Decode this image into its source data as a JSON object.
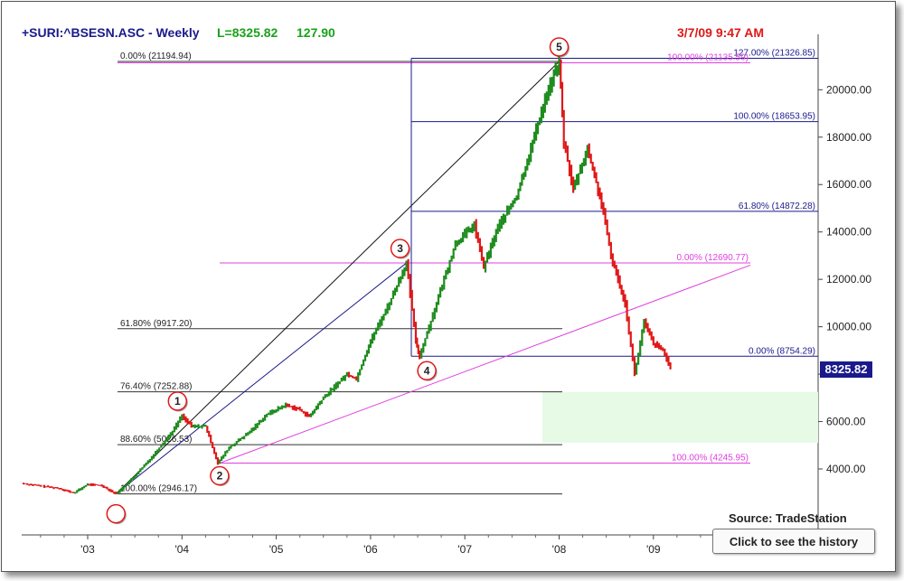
{
  "header": {
    "symbol": "+SURI:^BSESN.ASC - Weekly",
    "last": "L=8325.82",
    "change": "127.90",
    "datetime": "3/7/09 9:47 AM"
  },
  "last_price_label": "8325.82",
  "source": "Source: TradeStation",
  "history_button": "Click to see the history",
  "colors": {
    "up": "#1e8c1e",
    "down": "#e01818",
    "fib": "#1a1a8c",
    "magenta": "#e040e0",
    "zone": "#e6fae6"
  },
  "chart_data": {
    "type": "line",
    "x_ticks": [
      "'03",
      "'04",
      "'05",
      "'06",
      "'07",
      "'08",
      "'09"
    ],
    "y_ticks": [
      "4000.00",
      "6000.00",
      "8000.00",
      "10000.00",
      "12000.00",
      "14000.00",
      "16000.00",
      "18000.00",
      "20000.00"
    ],
    "ylim": [
      3000,
      21500
    ],
    "series": [
      {
        "values": [
          [
            2002.3,
            3390
          ],
          [
            2002.5,
            3280
          ],
          [
            2002.7,
            3180
          ],
          [
            2002.85,
            2980
          ],
          [
            2003.0,
            3350
          ],
          [
            2003.15,
            3300
          ],
          [
            2003.3,
            2946
          ],
          [
            2003.5,
            3700
          ],
          [
            2003.7,
            4600
          ],
          [
            2003.9,
            5600
          ],
          [
            2004.0,
            6250
          ],
          [
            2004.1,
            5800
          ],
          [
            2004.25,
            5800
          ],
          [
            2004.38,
            4246
          ],
          [
            2004.5,
            4900
          ],
          [
            2004.7,
            5500
          ],
          [
            2004.9,
            6300
          ],
          [
            2005.1,
            6700
          ],
          [
            2005.25,
            6500
          ],
          [
            2005.35,
            6200
          ],
          [
            2005.5,
            7000
          ],
          [
            2005.75,
            8000
          ],
          [
            2005.85,
            7800
          ],
          [
            2006.0,
            9400
          ],
          [
            2006.2,
            11000
          ],
          [
            2006.38,
            12690
          ],
          [
            2006.48,
            9400
          ],
          [
            2006.52,
            8754
          ],
          [
            2006.7,
            11000
          ],
          [
            2006.9,
            13500
          ],
          [
            2007.1,
            14300
          ],
          [
            2007.2,
            12500
          ],
          [
            2007.35,
            14200
          ],
          [
            2007.55,
            15500
          ],
          [
            2007.7,
            17500
          ],
          [
            2007.85,
            19600
          ],
          [
            2008.0,
            21194
          ],
          [
            2008.05,
            17800
          ],
          [
            2008.15,
            15800
          ],
          [
            2008.3,
            17500
          ],
          [
            2008.45,
            15200
          ],
          [
            2008.55,
            13000
          ],
          [
            2008.7,
            11000
          ],
          [
            2008.8,
            8000
          ],
          [
            2008.9,
            10200
          ],
          [
            2009.0,
            9300
          ],
          [
            2009.1,
            9000
          ],
          [
            2009.18,
            8326
          ]
        ]
      }
    ],
    "fib_left": [
      {
        "label": "0.00% (21194.94)",
        "y": 21194.94
      },
      {
        "label": "61.80% (9917.20)",
        "y": 9917.2
      },
      {
        "label": "76.40% (7252.88)",
        "y": 7252.88
      },
      {
        "label": "88.60% (5026.53)",
        "y": 5026.53
      },
      {
        "label": "100.00% (2946.17)",
        "y": 2946.17
      }
    ],
    "fib_right": [
      {
        "label": "127.00% (21326.85)",
        "y": 21326.85
      },
      {
        "label": "100.00% (18653.95)",
        "y": 18653.95
      },
      {
        "label": "61.80% (14872.28)",
        "y": 14872.28
      },
      {
        "label": "0.00% (8754.29)",
        "y": 8754.29
      }
    ],
    "magenta_levels": [
      {
        "label": "100.00% (21135.59)",
        "y": 21135.59
      },
      {
        "label": "0.00% (12690.77)",
        "y": 12690.77
      },
      {
        "label": "100.00% (4245.95)",
        "y": 4245.95
      }
    ],
    "target_zone": [
      5100,
      7250
    ],
    "waves": [
      {
        "label": "",
        "x": 2003.3,
        "y": 2946
      },
      {
        "label": "1",
        "x": 2004.0,
        "y": 6250
      },
      {
        "label": "2",
        "x": 2004.38,
        "y": 4246
      },
      {
        "label": "3",
        "x": 2006.38,
        "y": 12690
      },
      {
        "label": "4",
        "x": 2006.52,
        "y": 8754
      },
      {
        "label": "5",
        "x": 2008.0,
        "y": 21194
      }
    ]
  }
}
